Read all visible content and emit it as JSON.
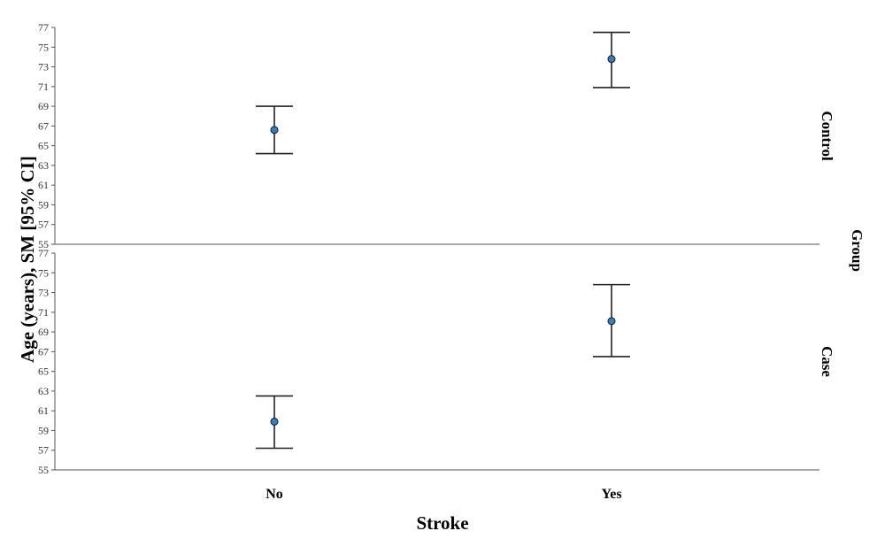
{
  "chart_data": {
    "type": "scatter",
    "subtype": "mean-with-95ci-errorbars, faceted by group",
    "xlabel": "Stroke",
    "ylabel": "Age (years), SM [95% CI]",
    "facet_label": "Group",
    "categories": [
      "No",
      "Yes"
    ],
    "ylim": [
      55,
      77
    ],
    "yticks": [
      "55",
      "57",
      "59",
      "61",
      "63",
      "65",
      "67",
      "69",
      "71",
      "73",
      "75",
      "77"
    ],
    "grid": false,
    "marker_color": "#2f7ec7",
    "panels": [
      {
        "name": "Control",
        "points": [
          {
            "category": "No",
            "mean": 66.6,
            "lower": 64.2,
            "upper": 69.0
          },
          {
            "category": "Yes",
            "mean": 73.8,
            "lower": 70.9,
            "upper": 76.5
          }
        ]
      },
      {
        "name": "Case",
        "points": [
          {
            "category": "No",
            "mean": 59.9,
            "lower": 57.2,
            "upper": 62.5
          },
          {
            "category": "Yes",
            "mean": 70.1,
            "lower": 66.5,
            "upper": 73.8
          }
        ]
      }
    ]
  }
}
